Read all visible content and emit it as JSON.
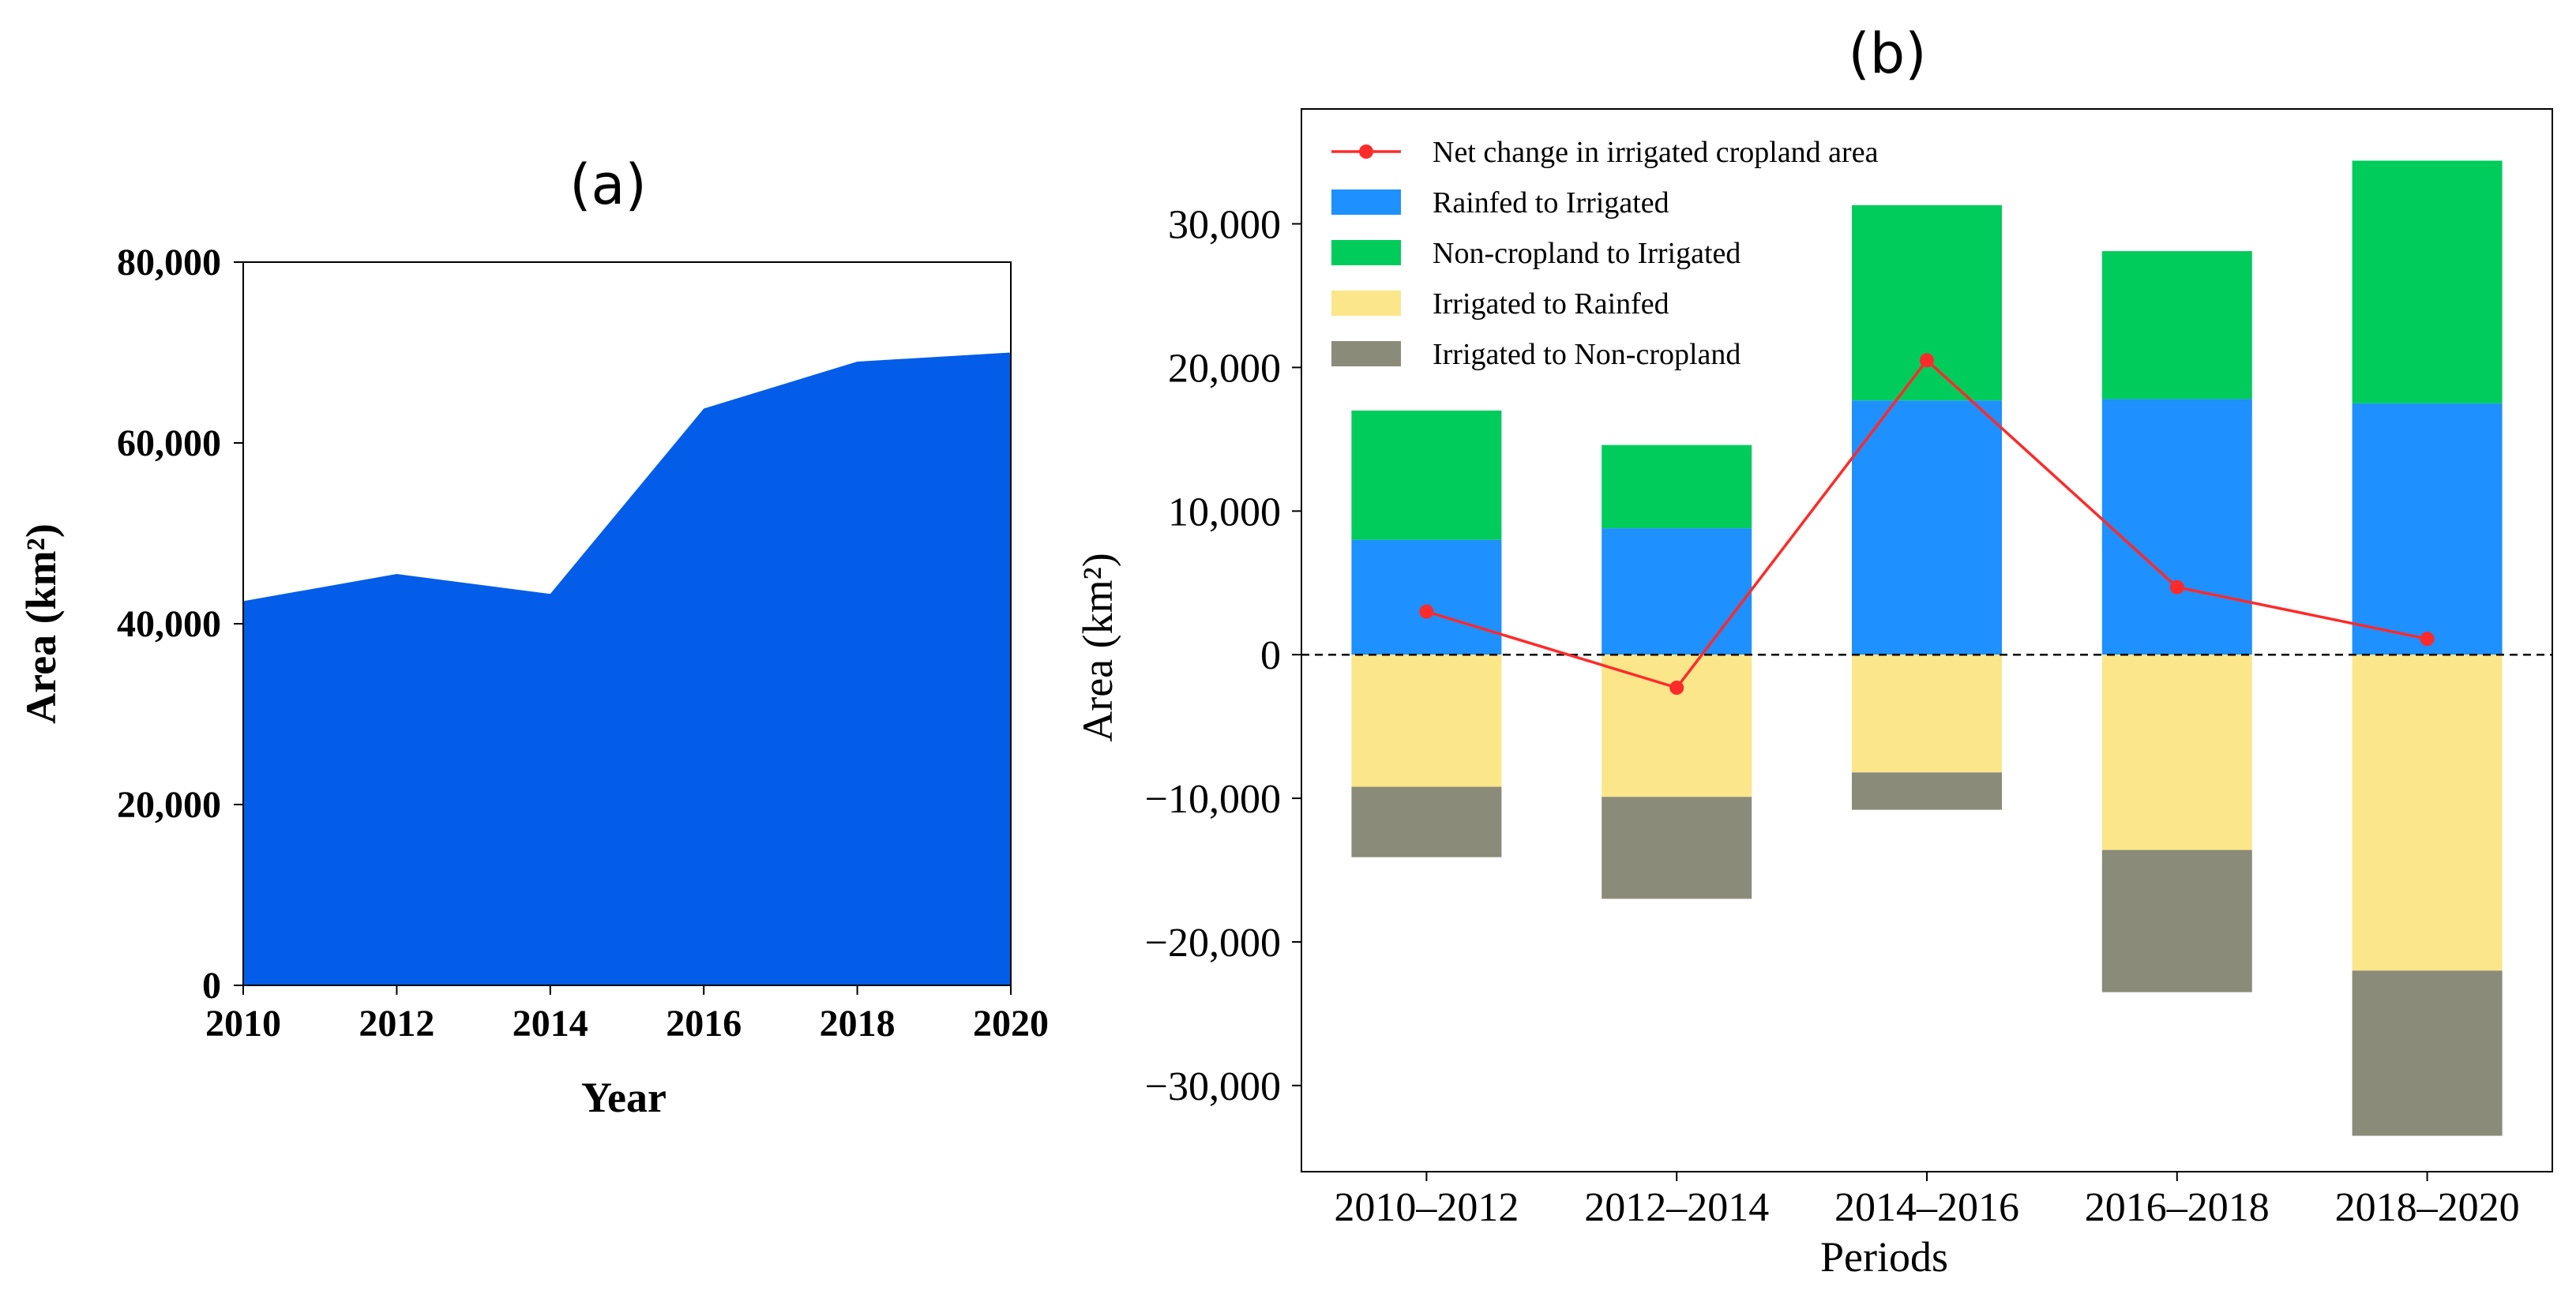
{
  "chart_data": [
    {
      "panel": "(a)",
      "type": "area",
      "title": "(a)",
      "xlabel": "Year",
      "ylabel": "Area (km²)",
      "x": [
        2010,
        2012,
        2014,
        2016,
        2018,
        2020
      ],
      "values": [
        42500,
        45500,
        43300,
        63800,
        69000,
        70000
      ],
      "xticks": [
        2010,
        2012,
        2014,
        2016,
        2018,
        2020
      ],
      "xtick_labels": [
        "2010",
        "2012",
        "2014",
        "2016",
        "2018",
        "2020"
      ],
      "yticks": [
        0,
        20000,
        40000,
        60000,
        80000
      ],
      "ytick_labels": [
        "0",
        "20,000",
        "40,000",
        "60,000",
        "80,000"
      ],
      "xlim": [
        2010,
        2020
      ],
      "ylim": [
        0,
        80000
      ],
      "grid": false,
      "color": "#035DE8"
    },
    {
      "panel": "(b)",
      "type": "bar",
      "title": "(b)",
      "xlabel": "Periods",
      "ylabel": "Area (km²)",
      "categories": [
        "2010–2012",
        "2012–2014",
        "2014–2016",
        "2016–2018",
        "2018–2020"
      ],
      "ylim": [
        -36000,
        38000
      ],
      "yticks": [
        -30000,
        -20000,
        -10000,
        0,
        10000,
        20000,
        30000
      ],
      "ytick_labels": [
        "−30,000",
        "−20,000",
        "−10,000",
        "0",
        "10,000",
        "20,000",
        "30,000"
      ],
      "grid": false,
      "legend_position": "top-left",
      "stacked": true,
      "series": [
        {
          "name": "Rainfed to Irrigated",
          "color": "#1E90FF",
          "values": [
            8000,
            8800,
            17700,
            17800,
            17500
          ]
        },
        {
          "name": "Non-cropland to Irrigated",
          "color": "#00CC5C",
          "values": [
            9000,
            5800,
            13600,
            10300,
            16900
          ]
        },
        {
          "name": "Irrigated to Rainfed",
          "color": "#FCE68A",
          "values": [
            -9200,
            -9900,
            -8200,
            -13600,
            -22000
          ]
        },
        {
          "name": "Irrigated to Non-cropland",
          "color": "#8B8B7A",
          "values": [
            -4900,
            -7100,
            -2600,
            -9900,
            -11500
          ]
        }
      ],
      "line": {
        "name": "Net change in irrigated cropland area",
        "color": "#FF2A2A",
        "values": [
          3000,
          -2300,
          20500,
          4700,
          1100
        ]
      }
    }
  ]
}
